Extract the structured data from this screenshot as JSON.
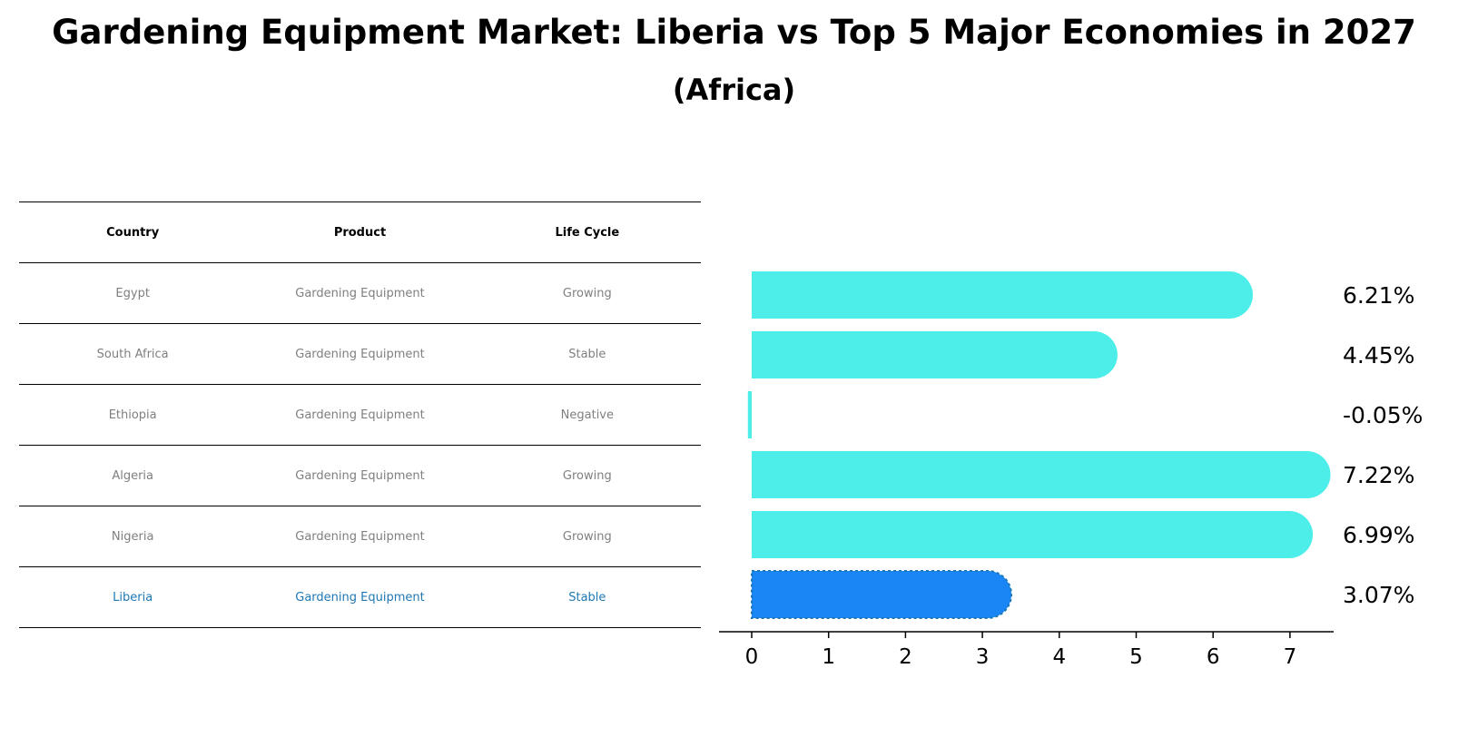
{
  "title": "Gardening Equipment Market: Liberia vs Top 5 Major Economies in 2027",
  "subtitle": "(Africa)",
  "table": {
    "headers": [
      "Country",
      "Product",
      "Life Cycle"
    ],
    "rows": [
      {
        "country": "Egypt",
        "product": "Gardening Equipment",
        "life_cycle": "Growing"
      },
      {
        "country": "South Africa",
        "product": "Gardening Equipment",
        "life_cycle": "Stable"
      },
      {
        "country": "Ethiopia",
        "product": "Gardening Equipment",
        "life_cycle": "Negative"
      },
      {
        "country": "Algeria",
        "product": "Gardening Equipment",
        "life_cycle": "Growing"
      },
      {
        "country": "Nigeria",
        "product": "Gardening Equipment",
        "life_cycle": "Growing"
      },
      {
        "country": "Liberia",
        "product": "Gardening Equipment",
        "life_cycle": "Stable"
      }
    ]
  },
  "chart_data": {
    "type": "bar",
    "orientation": "horizontal",
    "categories": [
      "Egypt",
      "South Africa",
      "Ethiopia",
      "Algeria",
      "Nigeria",
      "Liberia"
    ],
    "values": [
      6.21,
      4.45,
      -0.05,
      7.22,
      6.99,
      3.07
    ],
    "value_labels": [
      "6.21%",
      "4.45%",
      "-0.05%",
      "7.22%",
      "6.99%",
      "3.07%"
    ],
    "highlight": "Liberia",
    "xticks": [
      0,
      1,
      2,
      3,
      4,
      5,
      6,
      7
    ],
    "xlim": [
      -0.4,
      7.6
    ],
    "colors": {
      "default": "#4deeea",
      "highlight": "#1a85f4",
      "highlight_text": "#1f77b4",
      "muted_text": "#7f7f7f"
    }
  }
}
